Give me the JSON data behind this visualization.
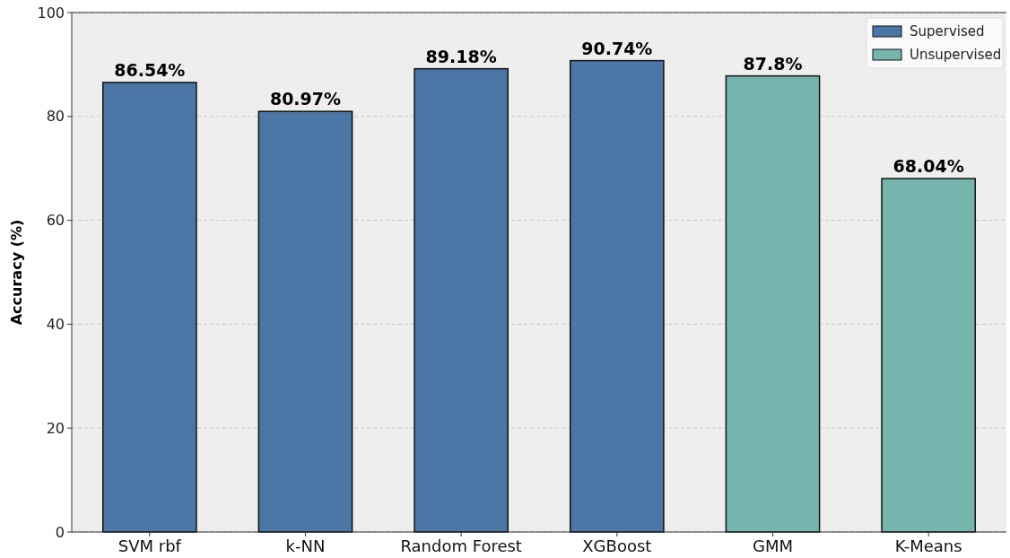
{
  "chart_data": {
    "type": "bar",
    "ylabel": "Accuracy (%)",
    "categories": [
      "SVM rbf",
      "k-NN",
      "Random Forest",
      "XGBoost",
      "GMM",
      "K-Means"
    ],
    "series": [
      {
        "name": "Supervised",
        "color": "#4c76a5",
        "values": [
          86.54,
          80.97,
          89.18,
          90.74,
          null,
          null
        ],
        "value_labels": [
          "86.54%",
          "80.97%",
          "89.18%",
          "90.74%",
          null,
          null
        ]
      },
      {
        "name": "Unsupervised",
        "color": "#76b5ad",
        "values": [
          null,
          null,
          null,
          null,
          87.8,
          68.04
        ],
        "value_labels": [
          null,
          null,
          null,
          null,
          "87.8%",
          "68.04%"
        ]
      }
    ],
    "ylim": [
      0,
      100
    ],
    "yticks": [
      0,
      20,
      40,
      60,
      80,
      100
    ],
    "grid": "y",
    "line_style": "dashed",
    "legend": "top right"
  }
}
